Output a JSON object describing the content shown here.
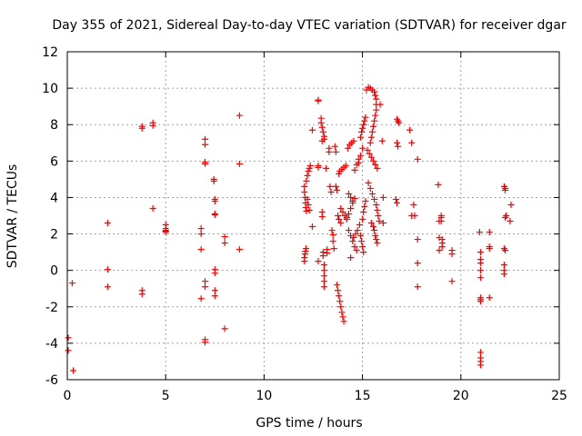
{
  "chart_data": {
    "type": "scatter",
    "title": "Day 355 of 2021, Sidereal Day-to-day VTEC variation (SDTVAR) for receiver dgar",
    "xlabel": "GPS time / hours",
    "ylabel": "SDTVAR / TECUs",
    "xlim": [
      0,
      25
    ],
    "ylim": [
      -6,
      12
    ],
    "xticks": [
      "0",
      "5",
      "10",
      "15",
      "20",
      "25"
    ],
    "yticks": [
      "-6",
      "-4",
      "-2",
      "0",
      "2",
      "4",
      "6",
      "8",
      "10",
      "12"
    ],
    "grid": true,
    "marker": "plus",
    "color": "#ff0000",
    "series": [
      {
        "name": "SDTVAR",
        "points": [
          [
            0.05,
            -3.7
          ],
          [
            0.05,
            -4.4
          ],
          [
            0.25,
            -0.7
          ],
          [
            0.3,
            -5.5
          ],
          [
            2.05,
            2.6
          ],
          [
            2.05,
            0.05
          ],
          [
            2.05,
            -0.9
          ],
          [
            3.8,
            7.9
          ],
          [
            3.8,
            7.8
          ],
          [
            3.8,
            -1.1
          ],
          [
            3.8,
            -1.3
          ],
          [
            4.35,
            8.1
          ],
          [
            4.35,
            7.95
          ],
          [
            4.35,
            3.4
          ],
          [
            5.0,
            2.5
          ],
          [
            5.0,
            2.3
          ],
          [
            5.0,
            2.2
          ],
          [
            5.0,
            2.15
          ],
          [
            5.0,
            2.1
          ],
          [
            6.8,
            2.3
          ],
          [
            6.8,
            1.15
          ],
          [
            6.8,
            -1.55
          ],
          [
            6.8,
            2.0
          ],
          [
            7.0,
            7.2
          ],
          [
            7.0,
            6.9
          ],
          [
            7.0,
            5.95
          ],
          [
            7.0,
            5.85
          ],
          [
            7.0,
            -0.6
          ],
          [
            7.0,
            -0.9
          ],
          [
            7.0,
            -3.8
          ],
          [
            7.0,
            -3.95
          ],
          [
            7.45,
            5.0
          ],
          [
            7.45,
            4.9
          ],
          [
            7.5,
            3.9
          ],
          [
            7.5,
            3.8
          ],
          [
            7.5,
            3.1
          ],
          [
            7.5,
            3.05
          ],
          [
            7.5,
            0.05
          ],
          [
            7.5,
            -0.15
          ],
          [
            7.5,
            -1.1
          ],
          [
            7.5,
            -1.4
          ],
          [
            8.0,
            1.85
          ],
          [
            8.0,
            1.5
          ],
          [
            8.0,
            -3.2
          ],
          [
            8.75,
            8.5
          ],
          [
            8.75,
            5.85
          ],
          [
            8.75,
            1.15
          ],
          [
            12.05,
            0.5
          ],
          [
            12.05,
            0.7
          ],
          [
            12.08,
            0.9
          ],
          [
            12.1,
            1.05
          ],
          [
            12.13,
            1.2
          ],
          [
            12.05,
            4.6
          ],
          [
            12.05,
            4.3
          ],
          [
            12.08,
            4.0
          ],
          [
            12.1,
            3.7
          ],
          [
            12.12,
            3.45
          ],
          [
            12.15,
            3.25
          ],
          [
            12.15,
            4.9
          ],
          [
            12.2,
            5.2
          ],
          [
            12.25,
            5.45
          ],
          [
            12.3,
            5.6
          ],
          [
            12.35,
            5.75
          ],
          [
            12.2,
            3.9
          ],
          [
            12.25,
            3.6
          ],
          [
            12.3,
            3.3
          ],
          [
            12.45,
            7.7
          ],
          [
            12.45,
            2.4
          ],
          [
            12.75,
            9.35
          ],
          [
            12.75,
            9.3
          ],
          [
            12.75,
            5.75
          ],
          [
            12.75,
            5.65
          ],
          [
            12.75,
            0.5
          ],
          [
            12.9,
            8.35
          ],
          [
            12.9,
            8.1
          ],
          [
            12.95,
            7.85
          ],
          [
            13.0,
            7.6
          ],
          [
            13.05,
            7.35
          ],
          [
            13.05,
            7.2
          ],
          [
            12.95,
            7.1
          ],
          [
            12.95,
            3.2
          ],
          [
            12.95,
            2.95
          ],
          [
            13.0,
            1.0
          ],
          [
            13.0,
            0.8
          ],
          [
            13.05,
            0.3
          ],
          [
            13.05,
            0.0
          ],
          [
            13.05,
            -0.3
          ],
          [
            13.05,
            -0.6
          ],
          [
            13.05,
            -0.9
          ],
          [
            13.2,
            1.15
          ],
          [
            13.2,
            0.95
          ],
          [
            13.15,
            5.6
          ],
          [
            13.3,
            6.7
          ],
          [
            13.3,
            6.5
          ],
          [
            13.35,
            4.6
          ],
          [
            13.4,
            4.3
          ],
          [
            13.45,
            2.2
          ],
          [
            13.5,
            1.95
          ],
          [
            13.5,
            1.6
          ],
          [
            13.55,
            1.2
          ],
          [
            13.6,
            6.8
          ],
          [
            13.65,
            6.5
          ],
          [
            13.65,
            4.6
          ],
          [
            13.7,
            4.4
          ],
          [
            13.75,
            3.0
          ],
          [
            13.8,
            2.8
          ],
          [
            13.9,
            2.6
          ],
          [
            13.7,
            -0.8
          ],
          [
            13.75,
            -1.1
          ],
          [
            13.8,
            -1.4
          ],
          [
            13.85,
            -1.7
          ],
          [
            13.9,
            -2.0
          ],
          [
            13.95,
            -2.3
          ],
          [
            14.0,
            -2.55
          ],
          [
            14.05,
            -2.8
          ],
          [
            13.8,
            5.3
          ],
          [
            13.85,
            5.45
          ],
          [
            13.95,
            5.55
          ],
          [
            14.05,
            5.65
          ],
          [
            14.15,
            5.75
          ],
          [
            13.9,
            3.4
          ],
          [
            14.0,
            3.2
          ],
          [
            14.1,
            3.0
          ],
          [
            14.2,
            2.8
          ],
          [
            14.2,
            2.9
          ],
          [
            14.3,
            3.1
          ],
          [
            14.4,
            3.4
          ],
          [
            14.5,
            3.7
          ],
          [
            14.6,
            3.95
          ],
          [
            14.25,
            6.7
          ],
          [
            14.35,
            6.9
          ],
          [
            14.45,
            7.0
          ],
          [
            14.55,
            7.1
          ],
          [
            14.3,
            4.2
          ],
          [
            14.4,
            4.0
          ],
          [
            14.5,
            3.8
          ],
          [
            14.3,
            2.2
          ],
          [
            14.4,
            1.9
          ],
          [
            14.5,
            1.6
          ],
          [
            14.6,
            1.3
          ],
          [
            14.7,
            1.1
          ],
          [
            14.4,
            0.7
          ],
          [
            14.55,
            1.8
          ],
          [
            14.65,
            2.0
          ],
          [
            14.75,
            2.2
          ],
          [
            14.85,
            2.5
          ],
          [
            14.6,
            5.5
          ],
          [
            14.7,
            5.8
          ],
          [
            14.8,
            6.1
          ],
          [
            14.9,
            7.3
          ],
          [
            14.95,
            7.6
          ],
          [
            15.0,
            7.8
          ],
          [
            15.05,
            8.0
          ],
          [
            15.1,
            8.2
          ],
          [
            15.15,
            8.4
          ],
          [
            14.8,
            5.9
          ],
          [
            14.9,
            6.3
          ],
          [
            15.0,
            6.7
          ],
          [
            15.0,
            2.8
          ],
          [
            15.05,
            3.2
          ],
          [
            15.1,
            3.5
          ],
          [
            15.15,
            3.8
          ],
          [
            14.9,
            1.9
          ],
          [
            14.95,
            1.6
          ],
          [
            15.0,
            1.3
          ],
          [
            15.05,
            1.0
          ],
          [
            15.2,
            9.9
          ],
          [
            15.3,
            10.05
          ],
          [
            15.4,
            10.0
          ],
          [
            15.5,
            9.9
          ],
          [
            15.6,
            9.8
          ],
          [
            15.65,
            9.6
          ],
          [
            15.7,
            9.4
          ],
          [
            15.7,
            9.1
          ],
          [
            15.7,
            8.8
          ],
          [
            15.65,
            8.5
          ],
          [
            15.6,
            8.2
          ],
          [
            15.55,
            7.9
          ],
          [
            15.5,
            7.6
          ],
          [
            15.45,
            7.3
          ],
          [
            15.4,
            7.0
          ],
          [
            15.25,
            6.6
          ],
          [
            15.35,
            6.4
          ],
          [
            15.45,
            6.2
          ],
          [
            15.55,
            6.0
          ],
          [
            15.65,
            5.8
          ],
          [
            15.75,
            5.6
          ],
          [
            15.3,
            4.8
          ],
          [
            15.4,
            4.5
          ],
          [
            15.5,
            4.2
          ],
          [
            15.6,
            3.9
          ],
          [
            15.7,
            3.6
          ],
          [
            15.75,
            3.3
          ],
          [
            15.8,
            3.0
          ],
          [
            15.85,
            2.7
          ],
          [
            15.45,
            2.6
          ],
          [
            15.55,
            2.4
          ],
          [
            15.6,
            2.2
          ],
          [
            15.65,
            1.9
          ],
          [
            15.7,
            1.7
          ],
          [
            15.75,
            1.5
          ],
          [
            15.9,
            9.1
          ],
          [
            16.0,
            7.1
          ],
          [
            16.05,
            4.0
          ],
          [
            16.05,
            2.6
          ],
          [
            16.75,
            8.3
          ],
          [
            16.8,
            8.2
          ],
          [
            16.85,
            8.1
          ],
          [
            16.75,
            7.0
          ],
          [
            16.8,
            6.8
          ],
          [
            16.7,
            3.9
          ],
          [
            16.75,
            3.7
          ],
          [
            17.4,
            7.7
          ],
          [
            17.5,
            7.0
          ],
          [
            17.5,
            3.0
          ],
          [
            17.6,
            3.6
          ],
          [
            17.65,
            3.0
          ],
          [
            17.8,
            6.1
          ],
          [
            17.8,
            1.7
          ],
          [
            17.8,
            0.4
          ],
          [
            17.8,
            -0.9
          ],
          [
            18.85,
            4.7
          ],
          [
            18.9,
            2.7
          ],
          [
            18.9,
            1.8
          ],
          [
            18.9,
            1.1
          ],
          [
            19.0,
            3.0
          ],
          [
            19.0,
            2.9
          ],
          [
            19.0,
            2.7
          ],
          [
            19.05,
            1.7
          ],
          [
            19.05,
            1.5
          ],
          [
            19.05,
            1.3
          ],
          [
            19.55,
            1.1
          ],
          [
            19.55,
            0.9
          ],
          [
            19.55,
            -0.6
          ],
          [
            20.95,
            2.1
          ],
          [
            21.0,
            1.0
          ],
          [
            21.0,
            0.6
          ],
          [
            21.0,
            0.4
          ],
          [
            21.0,
            0.0
          ],
          [
            21.0,
            -0.4
          ],
          [
            21.0,
            -1.5
          ],
          [
            21.0,
            -1.6
          ],
          [
            21.0,
            -1.7
          ],
          [
            21.0,
            -4.5
          ],
          [
            21.0,
            -4.8
          ],
          [
            21.0,
            -5.0
          ],
          [
            21.0,
            -5.2
          ],
          [
            21.45,
            2.1
          ],
          [
            21.45,
            1.3
          ],
          [
            21.45,
            1.2
          ],
          [
            21.45,
            -1.5
          ],
          [
            22.2,
            4.6
          ],
          [
            22.25,
            4.5
          ],
          [
            22.25,
            4.4
          ],
          [
            22.3,
            3.0
          ],
          [
            22.25,
            2.9
          ],
          [
            22.2,
            1.2
          ],
          [
            22.25,
            1.1
          ],
          [
            22.2,
            0.3
          ],
          [
            22.2,
            0.0
          ],
          [
            22.2,
            -0.2
          ],
          [
            22.55,
            3.6
          ],
          [
            22.5,
            2.7
          ]
        ]
      }
    ]
  }
}
